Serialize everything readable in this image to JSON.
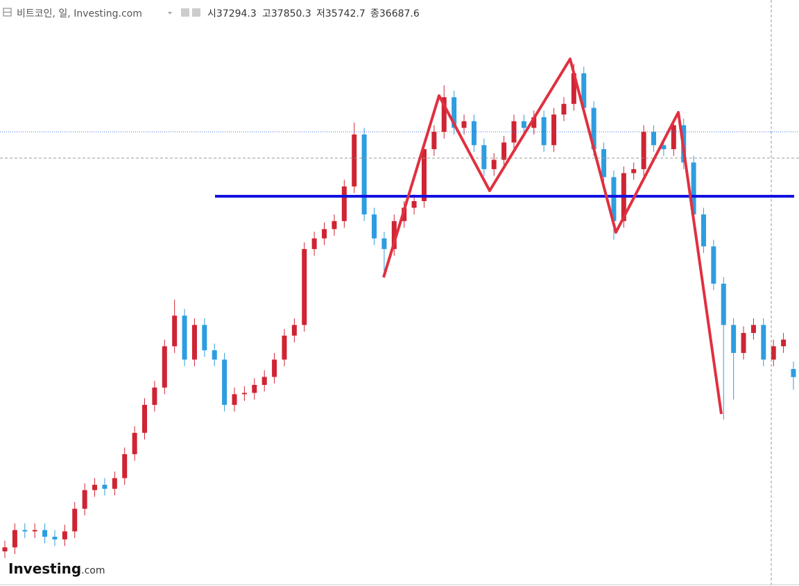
{
  "header": {
    "title": "비트코인, 일, Investing.com",
    "open_label": "시",
    "open": 37294.3,
    "high_label": "고",
    "high": 37850.3,
    "low_label": "저",
    "low": 35742.7,
    "close_label": "종",
    "close": 36687.6
  },
  "logo": {
    "name": "Investing",
    "suffix": ".com"
  },
  "chart_data": {
    "type": "candlestick",
    "ylim": [
      21000,
      65000
    ],
    "up_color": "#cf2433",
    "down_color": "#2e9de0",
    "series": {
      "open": [
        23600,
        23900,
        25200,
        25100,
        25200,
        24700,
        24500,
        25100,
        26800,
        28200,
        28600,
        28300,
        29100,
        30900,
        32500,
        34600,
        35900,
        39000,
        41300,
        38000,
        40600,
        38700,
        38000,
        34600,
        35400,
        35500,
        36100,
        36700,
        38000,
        39800,
        40600,
        46300,
        47100,
        47800,
        48400,
        51000,
        54900,
        48900,
        47100,
        46300,
        48400,
        49400,
        49900,
        53800,
        55100,
        57700,
        55400,
        55900,
        54100,
        52300,
        53000,
        54300,
        55900,
        55400,
        56200,
        54100,
        56400,
        57200,
        59500,
        56900,
        53800,
        51700,
        48400,
        52000,
        52300,
        55100,
        54100,
        53800,
        55600,
        52800,
        48900,
        46500,
        43700,
        40600,
        38500,
        40000,
        40600,
        38000,
        39000,
        37294.3
      ],
      "high": [
        24400,
        25700,
        25700,
        25700,
        25700,
        25200,
        25600,
        27300,
        28700,
        29100,
        29100,
        29600,
        31400,
        33000,
        35100,
        36400,
        39500,
        42500,
        41800,
        41100,
        41100,
        39200,
        38500,
        35900,
        36000,
        36600,
        37200,
        38500,
        40300,
        41100,
        46800,
        47600,
        48300,
        48900,
        51500,
        55800,
        55400,
        49400,
        47600,
        48900,
        49900,
        50400,
        54300,
        55600,
        58600,
        58200,
        56400,
        56400,
        54600,
        53500,
        54800,
        56400,
        56400,
        56700,
        56700,
        56900,
        57700,
        60200,
        60000,
        57400,
        54300,
        52200,
        52500,
        52800,
        55600,
        55600,
        54600,
        56100,
        56100,
        53300,
        49400,
        47000,
        44200,
        41100,
        40500,
        41100,
        41100,
        39500,
        40000,
        37850.3
      ],
      "low": [
        23100,
        23400,
        24600,
        24600,
        24200,
        24000,
        24000,
        24600,
        26300,
        27700,
        27800,
        27800,
        28600,
        30400,
        32000,
        34100,
        35400,
        38500,
        37500,
        37500,
        38200,
        37500,
        34100,
        34100,
        34900,
        35000,
        35600,
        36200,
        37500,
        39300,
        40100,
        45800,
        46600,
        47300,
        47900,
        50500,
        48400,
        46600,
        44500,
        45800,
        47900,
        48900,
        49400,
        53300,
        54600,
        54900,
        54900,
        53600,
        51800,
        51800,
        52500,
        53800,
        54900,
        54900,
        53600,
        53600,
        55900,
        56700,
        56400,
        53300,
        51200,
        47000,
        47900,
        51500,
        51800,
        53600,
        53300,
        53300,
        52300,
        48400,
        46000,
        43200,
        33500,
        35000,
        38000,
        39500,
        37500,
        37500,
        38500,
        35742.7
      ],
      "close": [
        23900,
        25200,
        25100,
        25200,
        24700,
        24500,
        25100,
        26800,
        28200,
        28600,
        28300,
        29100,
        30900,
        32500,
        34600,
        35900,
        39000,
        41300,
        38000,
        40600,
        38700,
        38000,
        34600,
        35400,
        35500,
        36100,
        36700,
        38000,
        39800,
        40600,
        46300,
        47100,
        47800,
        48400,
        51000,
        54900,
        48900,
        47100,
        46300,
        48400,
        49400,
        49900,
        53800,
        55100,
        57700,
        55400,
        55900,
        54100,
        52300,
        53000,
        54300,
        55900,
        55400,
        56200,
        54100,
        56400,
        57200,
        59500,
        56900,
        53800,
        51700,
        48400,
        52000,
        52300,
        55100,
        54100,
        53800,
        55600,
        52800,
        48900,
        46500,
        43700,
        40600,
        38500,
        40000,
        40600,
        38000,
        39000,
        39500,
        36687.6
      ]
    }
  }
}
